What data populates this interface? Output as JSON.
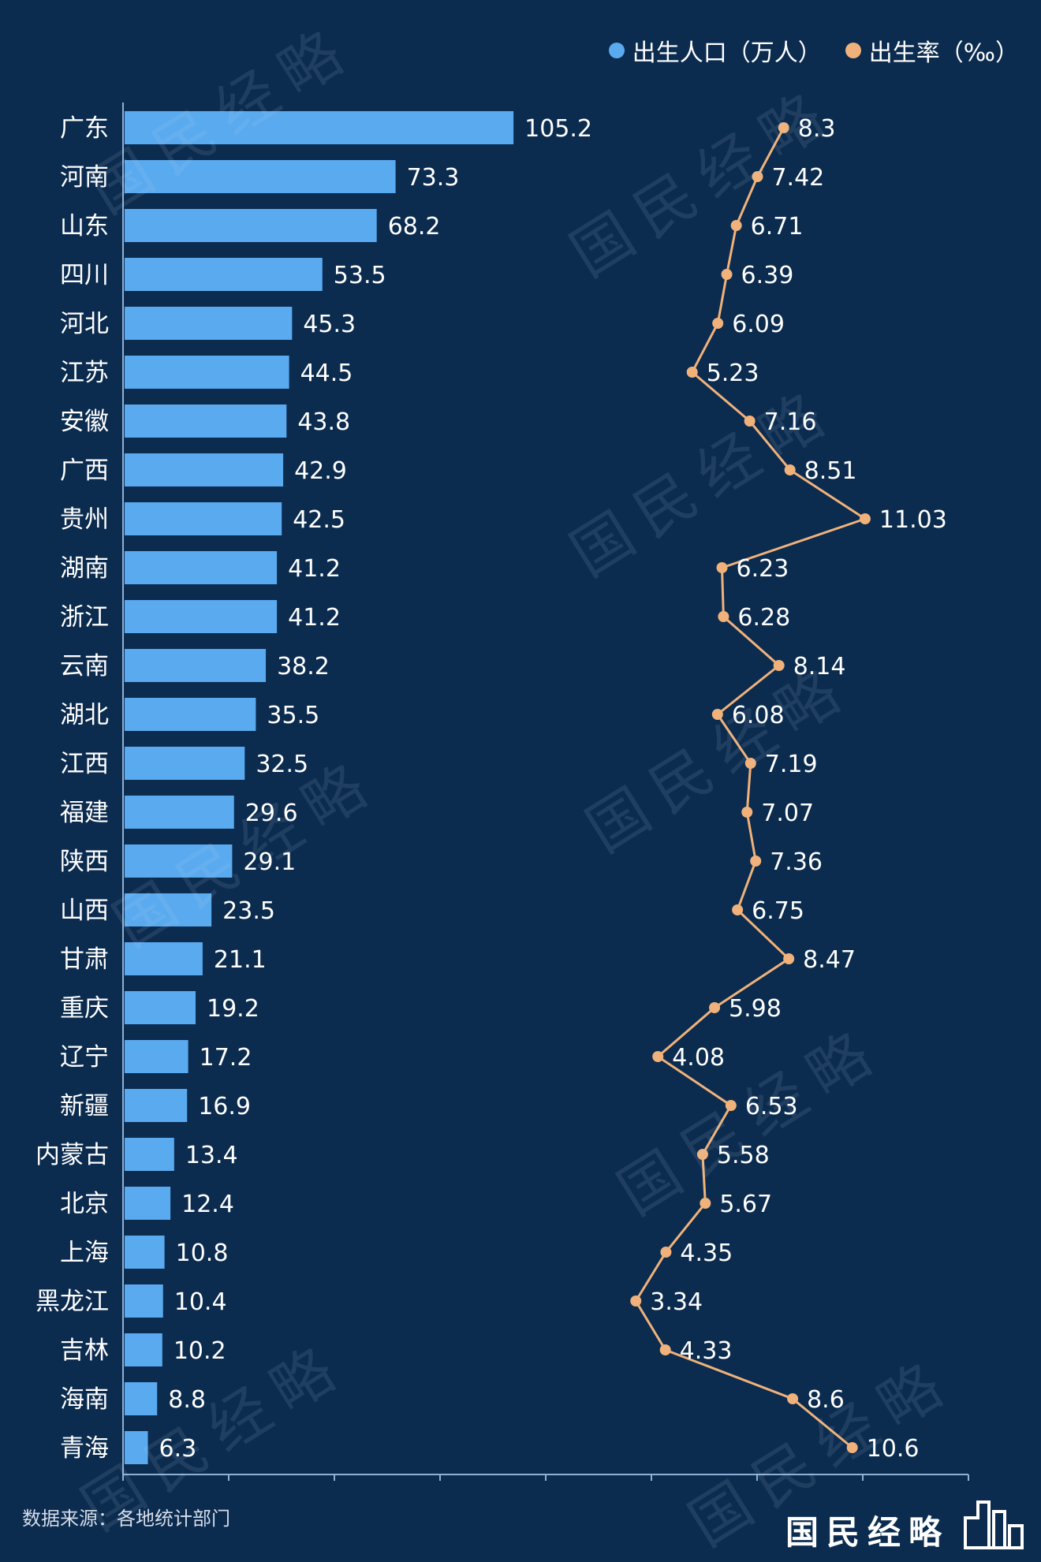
{
  "legend": {
    "births_label": "出生人口（万人）",
    "rate_label": "出生率（‰）"
  },
  "colors": {
    "background": "#0b2b4f",
    "bar": "#5aaaf0",
    "line": "#f0b27a",
    "text": "#ffffff",
    "axis": "#8fb0d4"
  },
  "source": {
    "label": "数据来源：",
    "value": "各地统计部门"
  },
  "logo": {
    "name": "国民经略",
    "watermark": "国民经略"
  },
  "chart_data": {
    "type": "bar",
    "orientation": "horizontal",
    "categories": [
      "广东",
      "河南",
      "山东",
      "四川",
      "河北",
      "江苏",
      "安徽",
      "广西",
      "贵州",
      "湖南",
      "浙江",
      "云南",
      "湖北",
      "江西",
      "福建",
      "陕西",
      "山西",
      "甘肃",
      "重庆",
      "辽宁",
      "新疆",
      "内蒙古",
      "北京",
      "上海",
      "黑龙江",
      "吉林",
      "海南",
      "青海"
    ],
    "series": [
      {
        "name": "出生人口（万人）",
        "type": "bar",
        "values": [
          105.2,
          73.3,
          68.2,
          53.5,
          45.3,
          44.5,
          43.8,
          42.9,
          42.5,
          41.2,
          41.2,
          38.2,
          35.5,
          32.5,
          29.6,
          29.1,
          23.5,
          21.1,
          19.2,
          17.2,
          16.9,
          13.4,
          12.4,
          10.8,
          10.4,
          10.2,
          8.8,
          6.3
        ],
        "labels": [
          "105.2",
          "73.3",
          "68.2",
          "53.5",
          "45.3",
          "44.5",
          "43.8",
          "42.9",
          "42.5",
          "41.2",
          "41.2",
          "38.2",
          "35.5",
          "32.5",
          "29.6",
          "29.1",
          "23.5",
          "21.1",
          "19.2",
          "17.2",
          "16.9",
          "13.4",
          "12.4",
          "10.8",
          "10.4",
          "10.2",
          "8.8",
          "6.3"
        ]
      },
      {
        "name": "出生率（‰）",
        "type": "line",
        "values": [
          8.3,
          7.42,
          6.71,
          6.39,
          6.09,
          5.23,
          7.16,
          8.51,
          11.03,
          6.23,
          6.28,
          8.14,
          6.08,
          7.19,
          7.07,
          7.36,
          6.75,
          8.47,
          5.98,
          4.08,
          6.53,
          5.58,
          5.67,
          4.35,
          3.34,
          4.33,
          8.6,
          10.6
        ],
        "labels": [
          "8.3",
          "7.42",
          "6.71",
          "6.39",
          "6.09",
          "5.23",
          "7.16",
          "8.51",
          "11.03",
          "6.23",
          "6.28",
          "8.14",
          "6.08",
          "7.19",
          "7.07",
          "7.36",
          "6.75",
          "8.47",
          "5.98",
          "4.08",
          "6.53",
          "5.58",
          "5.67",
          "4.35",
          "3.34",
          "4.33",
          "8.6",
          "10.6"
        ]
      }
    ],
    "xlim_bars": [
      0,
      160
    ],
    "rate_range": [
      0,
      14
    ],
    "grid": false,
    "legend_position": "top-right"
  }
}
